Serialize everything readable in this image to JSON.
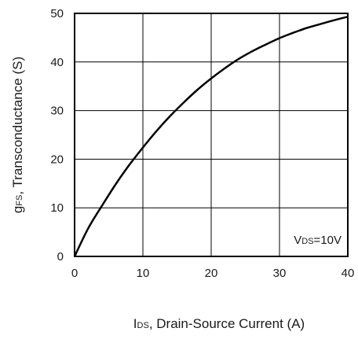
{
  "chart_data": {
    "type": "line",
    "title": "",
    "xlabel": {
      "main": "I",
      "sub": "DS",
      "rest": ", Drain-Source Current (A)"
    },
    "ylabel": {
      "main": "g",
      "sub": "FS",
      "rest": ", Transconductance (S)"
    },
    "xlim": [
      0,
      40
    ],
    "ylim": [
      0,
      50
    ],
    "xticks": [
      0,
      10,
      20,
      30,
      40
    ],
    "yticks": [
      0,
      10,
      20,
      30,
      40,
      50
    ],
    "grid": true,
    "legend": "none",
    "annotation": {
      "main": "V",
      "sub": "DS",
      "rest": "=10V",
      "position": "bottom-right"
    },
    "series": [
      {
        "name": "",
        "color": "#000000",
        "x": [
          0,
          2,
          4,
          6,
          8,
          10,
          12,
          14,
          16,
          18,
          20,
          22,
          24,
          26,
          28,
          30,
          32,
          34,
          36,
          38,
          40
        ],
        "y": [
          0,
          5.8,
          10.4,
          14.8,
          18.8,
          22.4,
          25.8,
          28.9,
          31.7,
          34.3,
          36.6,
          38.7,
          40.6,
          42.2,
          43.6,
          44.9,
          46.0,
          47.0,
          47.8,
          48.6,
          49.3
        ]
      }
    ]
  }
}
